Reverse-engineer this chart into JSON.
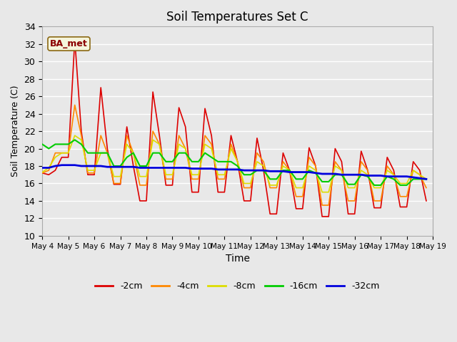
{
  "title": "Soil Temperatures Set C",
  "xlabel": "Time",
  "ylabel": "Soil Temperature (C)",
  "ylim": [
    10,
    34
  ],
  "yticks": [
    10,
    12,
    14,
    16,
    18,
    20,
    22,
    24,
    26,
    28,
    30,
    32,
    34
  ],
  "legend_label": "BA_met",
  "series_colors": {
    "-2cm": "#dd0000",
    "-4cm": "#ff8800",
    "-8cm": "#dddd00",
    "-16cm": "#00cc00",
    "-32cm": "#0000dd"
  },
  "x_tick_labels": [
    "May 4",
    "May 5",
    "May 6",
    "May 7",
    "May 8",
    "May 9",
    "May 10",
    "May 11",
    "May 12",
    "May 13",
    "May 14",
    "May 15",
    "May 16",
    "May 17",
    "May 18",
    "May 19"
  ],
  "n_days": 15,
  "pts_per_day": 4,
  "series": {
    "-2cm": [
      17.2,
      17.0,
      17.5,
      19.0,
      19.0,
      32.5,
      22.0,
      17.0,
      17.0,
      27.0,
      20.0,
      15.9,
      15.9,
      22.5,
      18.0,
      14.0,
      14.0,
      26.5,
      21.5,
      15.8,
      15.8,
      24.7,
      22.5,
      15.0,
      15.0,
      24.6,
      21.5,
      15.0,
      15.0,
      21.5,
      18.5,
      14.0,
      14.0,
      21.2,
      17.5,
      12.5,
      12.5,
      19.5,
      17.5,
      13.1,
      13.1,
      20.1,
      18.0,
      12.2,
      12.2,
      20.0,
      18.5,
      12.5,
      12.5,
      19.7,
      17.5,
      13.2,
      13.2,
      19.0,
      17.5,
      13.3,
      13.3,
      18.5,
      17.5,
      14.0
    ],
    "-4cm": [
      17.2,
      17.5,
      19.5,
      19.5,
      19.5,
      25.0,
      21.5,
      17.2,
      17.2,
      21.5,
      19.5,
      16.0,
      16.0,
      21.5,
      19.5,
      15.8,
      15.8,
      22.0,
      20.5,
      16.5,
      16.5,
      21.5,
      20.0,
      16.5,
      16.5,
      21.5,
      20.5,
      16.5,
      16.5,
      20.5,
      18.5,
      15.5,
      15.5,
      19.5,
      18.5,
      15.5,
      15.5,
      18.5,
      17.5,
      14.5,
      14.5,
      19.0,
      18.0,
      13.5,
      13.5,
      18.5,
      17.5,
      14.0,
      14.0,
      18.5,
      17.5,
      14.0,
      14.0,
      18.0,
      17.0,
      14.5,
      14.5,
      17.5,
      17.0,
      15.5
    ],
    "-8cm": [
      17.3,
      17.8,
      19.0,
      19.5,
      19.5,
      21.5,
      21.0,
      17.5,
      17.5,
      19.5,
      19.5,
      16.8,
      16.8,
      20.5,
      19.5,
      16.8,
      16.8,
      21.0,
      20.5,
      17.0,
      17.0,
      20.5,
      20.0,
      17.0,
      17.0,
      20.5,
      20.0,
      17.0,
      17.0,
      20.0,
      18.5,
      16.0,
      16.0,
      18.5,
      18.0,
      15.8,
      15.8,
      18.0,
      17.5,
      15.5,
      15.5,
      18.0,
      17.5,
      15.0,
      15.0,
      18.0,
      17.5,
      15.5,
      15.5,
      17.5,
      17.0,
      15.5,
      15.5,
      17.5,
      17.0,
      16.0,
      16.0,
      17.5,
      17.0,
      16.5
    ],
    "-16cm": [
      20.5,
      20.0,
      20.5,
      20.5,
      20.5,
      21.0,
      20.5,
      19.5,
      19.5,
      19.5,
      19.5,
      18.0,
      18.0,
      19.0,
      19.5,
      18.0,
      18.0,
      19.5,
      19.5,
      18.5,
      18.5,
      19.5,
      19.5,
      18.5,
      18.5,
      19.5,
      19.0,
      18.5,
      18.5,
      18.5,
      18.0,
      17.0,
      17.0,
      17.5,
      17.5,
      16.5,
      16.5,
      17.5,
      17.5,
      16.5,
      16.5,
      17.5,
      17.2,
      16.2,
      16.2,
      17.0,
      17.0,
      15.9,
      15.9,
      17.0,
      16.8,
      15.8,
      15.8,
      16.8,
      16.5,
      15.8,
      15.8,
      16.5,
      16.5,
      16.5
    ],
    "-32cm": [
      17.8,
      17.8,
      18.0,
      18.1,
      18.1,
      18.1,
      18.0,
      18.0,
      18.0,
      18.0,
      17.9,
      17.9,
      17.9,
      17.9,
      17.9,
      17.8,
      17.8,
      17.8,
      17.8,
      17.8,
      17.8,
      17.8,
      17.8,
      17.7,
      17.7,
      17.7,
      17.7,
      17.6,
      17.6,
      17.6,
      17.6,
      17.5,
      17.5,
      17.5,
      17.5,
      17.4,
      17.4,
      17.4,
      17.3,
      17.3,
      17.3,
      17.3,
      17.2,
      17.1,
      17.1,
      17.1,
      17.0,
      17.0,
      17.0,
      17.0,
      16.9,
      16.9,
      16.9,
      16.8,
      16.8,
      16.8,
      16.8,
      16.7,
      16.6,
      16.5
    ]
  }
}
